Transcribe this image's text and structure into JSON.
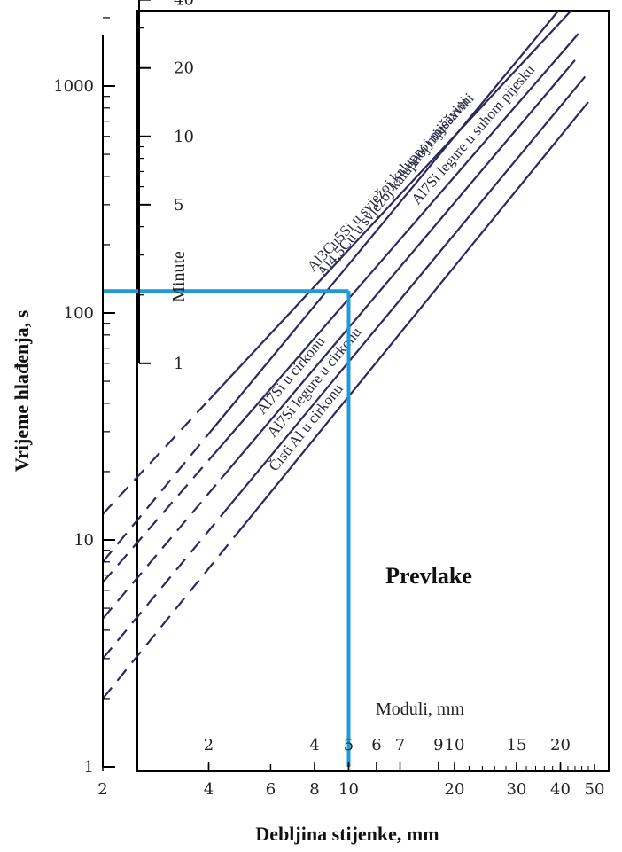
{
  "chart_data": {
    "type": "line",
    "xlabel": "Debljina stijenke, mm",
    "ylabel": "Vrijeme hlađenja, s",
    "x_scale": "log",
    "y_scale": "log",
    "xlim": [
      2,
      50
    ],
    "ylim": [
      1,
      2000
    ],
    "x_ticks": [
      2,
      4,
      6,
      8,
      10,
      20,
      30,
      40,
      50
    ],
    "y_ticks": [
      1,
      10,
      100,
      1000
    ],
    "minute_axis": {
      "label": "Minute",
      "ticks": [
        1,
        5,
        10,
        20,
        40
      ]
    },
    "modulus_axis": {
      "label": "Moduli, mm",
      "ticks": [
        2,
        4,
        5,
        6,
        7,
        9,
        10,
        15,
        20
      ]
    },
    "coating_label": "Prevlake",
    "series": [
      {
        "name": "Al3Cu5Si u svježoj kalupnoj mješavini",
        "points": [
          [
            2,
            13
          ],
          [
            47,
            2500
          ]
        ]
      },
      {
        "name": "Al4,5Cu u svježoj kalupnoj mješavini",
        "points": [
          [
            2,
            8
          ],
          [
            40,
            2200
          ]
        ]
      },
      {
        "name": "Al7Si legure u suhom pijesku",
        "points": [
          [
            2,
            6.5
          ],
          [
            45,
            1700
          ]
        ]
      },
      {
        "name": "Al7Si u cirkonu",
        "points": [
          [
            2,
            4.5
          ],
          [
            44,
            1300
          ]
        ]
      },
      {
        "name": "Al7Si legure u cirkonu",
        "points": [
          [
            2,
            3
          ],
          [
            47,
            1100
          ]
        ]
      },
      {
        "name": "Čisti Al u cirkonu",
        "points": [
          [
            2,
            2
          ],
          [
            48,
            850
          ]
        ]
      }
    ],
    "guide_lines": [
      {
        "from": [
          2,
          125
        ],
        "to": [
          10,
          125
        ]
      },
      {
        "from": [
          10,
          125
        ],
        "to": [
          10,
          1
        ]
      }
    ],
    "guide_color": "#1e9ad6",
    "line_color": "#2b2a5e"
  }
}
